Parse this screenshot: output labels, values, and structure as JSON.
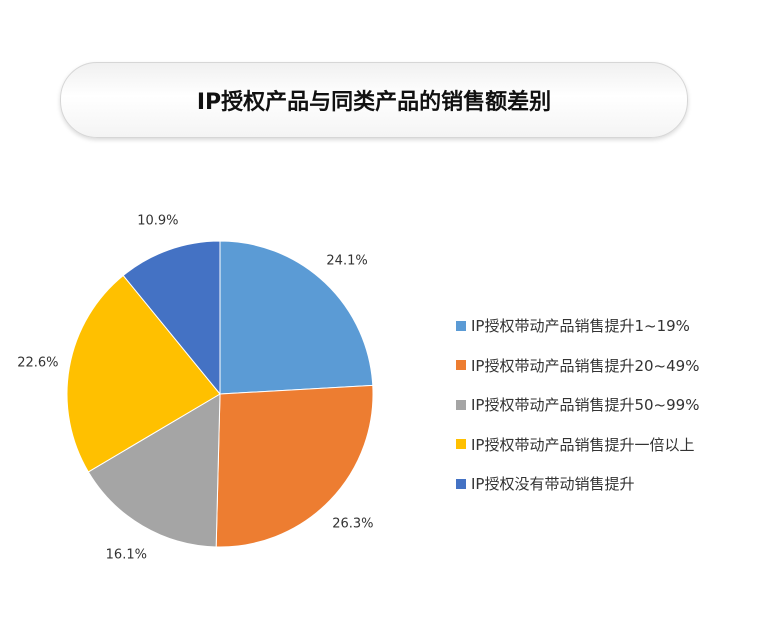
{
  "chart_data": {
    "type": "pie",
    "title": "IP授权产品与同类产品的销售额差别",
    "start_angle": "12 o'clock, clockwise",
    "legend_position": "right",
    "series": [
      {
        "name": "IP授权带动产品销售提升1~19%",
        "value": 24.1,
        "label": "24.1%",
        "color": "#5B9BD5"
      },
      {
        "name": "IP授权带动产品销售提升20~49%",
        "value": 26.3,
        "label": "26.3%",
        "color": "#ED7D31"
      },
      {
        "name": "IP授权带动产品销售提升50~99%",
        "value": 16.1,
        "label": "16.1%",
        "color": "#A5A5A5"
      },
      {
        "name": "IP授权带动产品销售提升一倍以上",
        "value": 22.6,
        "label": "22.6%",
        "color": "#FFC000"
      },
      {
        "name": "IP授权没有带动销售提升",
        "value": 10.9,
        "label": "10.9%",
        "color": "#4472C4"
      }
    ]
  }
}
